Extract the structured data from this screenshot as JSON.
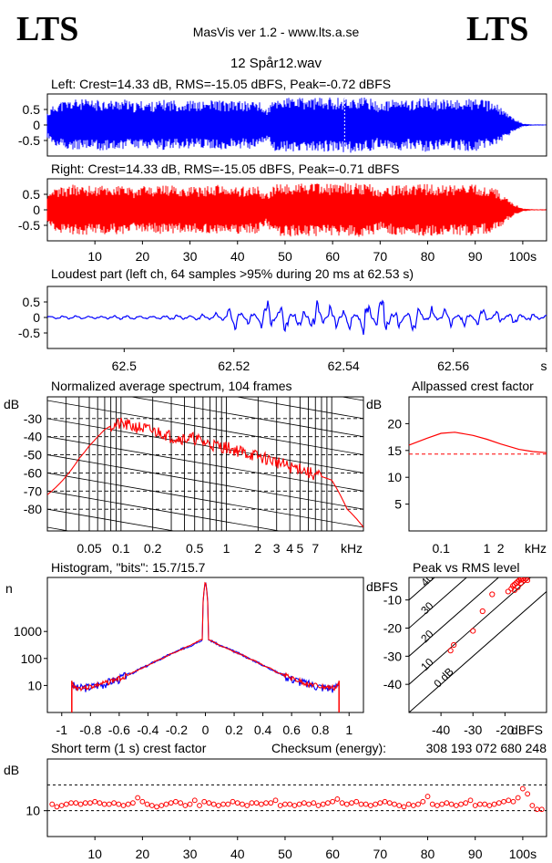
{
  "header": {
    "logo_left": "LTS",
    "logo_right": "LTS",
    "app_title": "MasVis ver 1.2 - www.lts.a.se",
    "file_name": "12 Spår12.wav"
  },
  "colors": {
    "left": "#0000ff",
    "right": "#ff0000",
    "grid": "#000000"
  },
  "chart_data": [
    {
      "type": "line",
      "id": "left-waveform",
      "title": "Left: Crest=14.33 dB, RMS=-15.05 dBFS, Peak=-0.72 dBFS",
      "yticks": [
        "0.5",
        "0",
        "-0.5"
      ],
      "ylim": [
        -1,
        1
      ],
      "xlim": [
        0,
        105
      ],
      "envelope_x": [
        0,
        2,
        4,
        6,
        8,
        10,
        12,
        14,
        16,
        18,
        20,
        22,
        24,
        26,
        28,
        30,
        32,
        34,
        36,
        38,
        40,
        42,
        44,
        46,
        48,
        50,
        52,
        54,
        56,
        58,
        60,
        62,
        64,
        66,
        68,
        70,
        72,
        74,
        76,
        78,
        80,
        82,
        84,
        86,
        88,
        90,
        92,
        94,
        96,
        98,
        100,
        102,
        105
      ],
      "envelope_y": [
        0.45,
        0.8,
        0.85,
        0.9,
        0.88,
        0.85,
        0.9,
        0.85,
        0.92,
        0.75,
        0.85,
        0.8,
        0.85,
        0.88,
        0.82,
        0.85,
        0.8,
        0.85,
        0.88,
        0.8,
        0.85,
        0.8,
        0.88,
        0.55,
        0.92,
        0.95,
        0.95,
        0.92,
        0.95,
        0.93,
        0.95,
        0.95,
        0.95,
        0.95,
        0.92,
        0.75,
        0.85,
        0.9,
        0.85,
        0.92,
        0.93,
        0.9,
        0.85,
        0.88,
        0.9,
        0.92,
        0.85,
        0.8,
        0.5,
        0.25,
        0.05,
        0.02,
        0.02
      ]
    },
    {
      "type": "line",
      "id": "right-waveform",
      "title": "Right: Crest=14.33 dB, RMS=-15.05 dBFS, Peak=-0.71 dBFS",
      "yticks": [
        "0.5",
        "0",
        "-0.5"
      ],
      "ylim": [
        -1,
        1
      ],
      "xlim": [
        0,
        105
      ],
      "xticks": [
        "10",
        "20",
        "30",
        "40",
        "50",
        "60",
        "70",
        "80",
        "90",
        "100s"
      ],
      "xtick_values": [
        10,
        20,
        30,
        40,
        50,
        60,
        70,
        80,
        90,
        100
      ],
      "envelope_x": [
        0,
        2,
        4,
        6,
        8,
        10,
        12,
        14,
        16,
        18,
        20,
        22,
        24,
        26,
        28,
        30,
        32,
        34,
        36,
        38,
        40,
        42,
        44,
        46,
        48,
        50,
        52,
        54,
        56,
        58,
        60,
        62,
        64,
        66,
        68,
        70,
        72,
        74,
        76,
        78,
        80,
        82,
        84,
        86,
        88,
        90,
        92,
        94,
        96,
        98,
        100,
        102,
        105
      ],
      "envelope_y": [
        0.45,
        0.78,
        0.82,
        0.88,
        0.86,
        0.84,
        0.88,
        0.82,
        0.9,
        0.72,
        0.84,
        0.78,
        0.83,
        0.86,
        0.8,
        0.83,
        0.78,
        0.83,
        0.86,
        0.78,
        0.83,
        0.78,
        0.86,
        0.55,
        0.9,
        0.93,
        0.93,
        0.9,
        0.93,
        0.91,
        0.93,
        0.93,
        0.93,
        0.93,
        0.9,
        0.73,
        0.83,
        0.88,
        0.83,
        0.9,
        0.91,
        0.88,
        0.83,
        0.86,
        0.88,
        0.9,
        0.83,
        0.78,
        0.48,
        0.22,
        0.05,
        0.02,
        0.02
      ]
    },
    {
      "type": "line",
      "id": "loudest-part",
      "title": "Loudest part (left  ch, 64 samples >95% during 20 ms at 62.53 s)",
      "yticks": [
        "0.5",
        "0",
        "-0.5"
      ],
      "ylim": [
        -1,
        1
      ],
      "xlim": [
        62.486,
        62.577
      ],
      "xticks": [
        "62.5",
        "62.52",
        "62.54",
        "62.56",
        "s"
      ],
      "xtick_values": [
        62.5,
        62.52,
        62.54,
        62.56,
        62.577
      ],
      "x": [
        62.486,
        62.49,
        62.495,
        62.5,
        62.505,
        62.51,
        62.514,
        62.517,
        62.52,
        62.523,
        62.526,
        62.529,
        62.532,
        62.535,
        62.538,
        62.541,
        62.544,
        62.547,
        62.55,
        62.553,
        62.556,
        62.559,
        62.562,
        62.565,
        62.568,
        62.571,
        62.574,
        62.577
      ],
      "y": [
        0.0,
        0.02,
        0.0,
        0.03,
        0.0,
        0.05,
        -0.08,
        0.12,
        -0.45,
        0.3,
        -0.6,
        0.55,
        -0.4,
        0.6,
        -0.5,
        0.5,
        -0.65,
        0.8,
        -0.35,
        0.55,
        -0.3,
        0.35,
        -0.25,
        0.3,
        -0.2,
        0.2,
        -0.1,
        0.05
      ]
    },
    {
      "type": "line",
      "id": "spectrum",
      "title": "Normalized average spectrum, 104 frames",
      "ylabel": "dB",
      "xlabel": "kHz",
      "yticks": [
        "-30",
        "-40",
        "-50",
        "-60",
        "-70",
        "-80"
      ],
      "ytick_values": [
        -30,
        -40,
        -50,
        -60,
        -70,
        -80
      ],
      "ylim": [
        -92,
        -18
      ],
      "xlim": [
        0.02,
        20
      ],
      "xscale": "log",
      "xticks": [
        "0.05",
        "0.1",
        "0.2",
        "0.5",
        "1",
        "2",
        "3",
        "4",
        "5",
        "7"
      ],
      "xtick_values": [
        0.05,
        0.1,
        0.2,
        0.5,
        1,
        2,
        3,
        4,
        5,
        7
      ],
      "x": [
        0.02,
        0.03,
        0.04,
        0.05,
        0.06,
        0.07,
        0.08,
        0.1,
        0.12,
        0.15,
        0.2,
        0.25,
        0.3,
        0.4,
        0.5,
        0.6,
        0.8,
        1,
        1.5,
        2,
        3,
        4,
        5,
        6,
        8,
        10,
        14,
        20
      ],
      "y": [
        -72,
        -62,
        -52,
        -45,
        -40,
        -36,
        -34,
        -33,
        -34,
        -35,
        -37,
        -38,
        -40,
        -41,
        -41,
        -43,
        -45,
        -46,
        -49,
        -51,
        -54,
        -57,
        -57,
        -60,
        -62,
        -64,
        -80,
        -90
      ]
    },
    {
      "type": "line",
      "id": "allpassed-crest",
      "title": "Allpassed crest factor",
      "ylabel": "dB",
      "xlabel": "kHz",
      "yticks": [
        "20",
        "15",
        "10",
        "5"
      ],
      "ytick_values": [
        20,
        15,
        10,
        5
      ],
      "ylim": [
        0,
        25
      ],
      "xlim": [
        0.02,
        20
      ],
      "xscale": "log",
      "xticks": [
        "0.1",
        "1",
        "2",
        "kHz"
      ],
      "xtick_values": [
        0.1,
        1,
        2,
        20
      ],
      "x": [
        0.02,
        0.05,
        0.1,
        0.2,
        0.5,
        1,
        2,
        5,
        10,
        20
      ],
      "y": [
        16.0,
        17.3,
        18.2,
        18.4,
        17.8,
        17.1,
        16.2,
        15.2,
        14.8,
        14.6
      ],
      "reference": 14.33
    },
    {
      "type": "line",
      "id": "histogram",
      "title": "Histogram, \"bits\": 15.7/15.7",
      "ylabel": "n",
      "yticks": [
        "1000",
        "100",
        "10"
      ],
      "ytick_values": [
        1000,
        100,
        10
      ],
      "yscale": "log",
      "ylim": [
        1,
        100000
      ],
      "xlim": [
        -1.1,
        1.1
      ],
      "xticks": [
        "-1",
        "-0.8",
        "-0.6",
        "-0.4",
        "-0.2",
        "0",
        "0.2",
        "0.4",
        "0.6",
        "0.8",
        "1"
      ],
      "xtick_values": [
        -1,
        -0.8,
        -0.6,
        -0.4,
        -0.2,
        0,
        0.2,
        0.4,
        0.6,
        0.8,
        1
      ],
      "x": [
        -0.93,
        -0.9,
        -0.8,
        -0.7,
        -0.6,
        -0.5,
        -0.4,
        -0.3,
        -0.2,
        -0.1,
        -0.02,
        0,
        0.02,
        0.1,
        0.2,
        0.3,
        0.4,
        0.5,
        0.6,
        0.7,
        0.8,
        0.9,
        0.93
      ],
      "y": [
        12,
        8,
        9,
        12,
        18,
        30,
        55,
        100,
        180,
        300,
        500,
        60000,
        500,
        300,
        180,
        100,
        55,
        30,
        18,
        12,
        9,
        8,
        12
      ]
    },
    {
      "type": "scatter",
      "id": "peak-vs-rms",
      "title": "Peak vs RMS level",
      "ylabel": "dBFS",
      "xlabel": "dBFS",
      "yticks": [
        "-10",
        "-20",
        "-30",
        "-40"
      ],
      "ytick_values": [
        -10,
        -20,
        -30,
        -40
      ],
      "xticks": [
        "-40",
        "-30",
        "-20"
      ],
      "xtick_values": [
        -40,
        -30,
        -20
      ],
      "xlim": [
        -50,
        -7
      ],
      "ylim": [
        -50,
        -2
      ],
      "crest_lines": [
        "0 dB",
        "10",
        "20",
        "30",
        "40"
      ],
      "crest_values": [
        0,
        10,
        20,
        30,
        40
      ],
      "x": [
        -37,
        -36,
        -30,
        -27,
        -24,
        -19,
        -18,
        -17.5,
        -17,
        -16.5,
        -16,
        -15.5,
        -15,
        -14.5,
        -14,
        -13.5,
        -13,
        -17,
        -16,
        -15
      ],
      "y": [
        -28,
        -26,
        -21,
        -14,
        -8,
        -7,
        -6,
        -5,
        -4.5,
        -4,
        -3.5,
        -3,
        -2.8,
        -2.5,
        -3,
        -2.5,
        -3,
        -6.5,
        -5.5,
        -4
      ]
    },
    {
      "type": "scatter",
      "id": "short-term-crest",
      "title": "Short term (1 s) crest factor",
      "checksum_label": "Checksum (energy):",
      "checksum_value": "308 193 072 680 248",
      "ylabel": "dB",
      "yticks": [
        "10"
      ],
      "ytick_values": [
        10
      ],
      "ylim": [
        0,
        30
      ],
      "xlim": [
        0,
        105
      ],
      "xticks": [
        "10",
        "20",
        "30",
        "40",
        "50",
        "60",
        "70",
        "80",
        "90",
        "100s"
      ],
      "xtick_values": [
        10,
        20,
        30,
        40,
        50,
        60,
        70,
        80,
        90,
        100
      ],
      "x": [
        1,
        2,
        3,
        4,
        5,
        6,
        7,
        8,
        9,
        10,
        11,
        12,
        13,
        14,
        15,
        16,
        17,
        18,
        19,
        20,
        21,
        22,
        23,
        24,
        25,
        26,
        27,
        28,
        29,
        30,
        31,
        32,
        33,
        34,
        35,
        36,
        37,
        38,
        39,
        40,
        41,
        42,
        43,
        44,
        45,
        46,
        47,
        48,
        49,
        50,
        51,
        52,
        53,
        54,
        55,
        56,
        57,
        58,
        59,
        60,
        61,
        62,
        63,
        64,
        65,
        66,
        67,
        68,
        69,
        70,
        71,
        72,
        73,
        74,
        75,
        76,
        77,
        78,
        79,
        80,
        81,
        82,
        83,
        84,
        85,
        86,
        87,
        88,
        89,
        90,
        91,
        92,
        93,
        94,
        95,
        96,
        97,
        98,
        99,
        100,
        101,
        102,
        103,
        104
      ],
      "y": [
        12.5,
        11.5,
        12,
        12.5,
        13,
        13,
        12.5,
        13,
        13,
        13.5,
        13,
        12.5,
        12.5,
        13,
        12.5,
        12,
        12.5,
        13,
        15,
        13.5,
        12.5,
        12,
        11.5,
        12,
        12.5,
        13,
        13.5,
        13,
        12,
        12.5,
        14,
        12,
        13.5,
        13,
        12.5,
        12,
        12.5,
        12.5,
        13.5,
        13,
        12.5,
        12,
        13,
        13,
        12.5,
        13,
        13,
        14,
        12,
        12.5,
        12.5,
        12,
        12.5,
        13,
        12.5,
        13,
        12,
        12.5,
        13,
        13.5,
        14.5,
        13,
        12.5,
        13,
        13.5,
        12.5,
        12.5,
        12,
        12.5,
        13,
        13.5,
        13,
        12.5,
        12,
        11.5,
        12.5,
        12,
        12.5,
        13.5,
        15.5,
        12.5,
        12,
        12.5,
        13,
        12.5,
        12,
        12.5,
        13,
        14,
        12,
        12.5,
        12.5,
        12,
        12.5,
        13,
        13.5,
        14,
        13.5,
        15,
        18.5,
        16.5,
        12,
        10.5,
        10.5
      ],
      "reference_lines": [
        10,
        20
      ]
    }
  ]
}
